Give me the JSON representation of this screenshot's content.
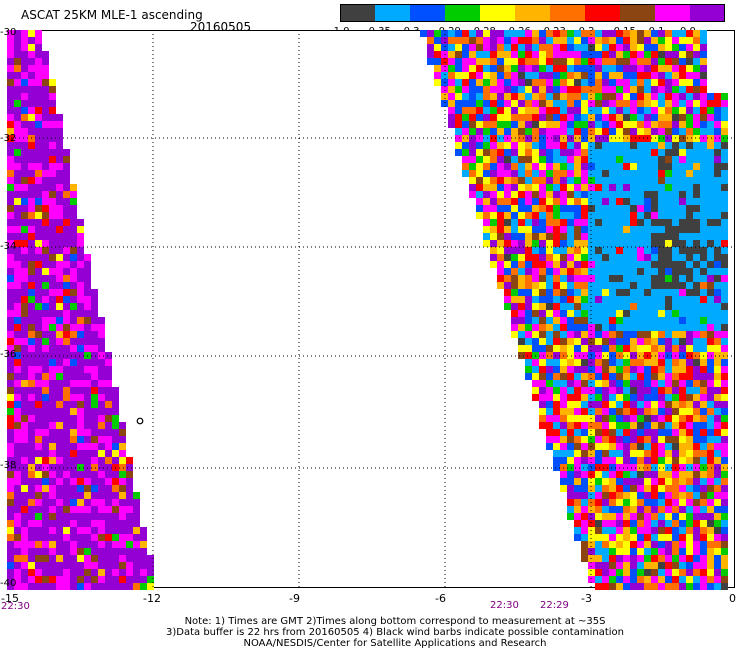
{
  "header": {
    "title": "ASCAT 25KM MLE-1 ascending",
    "date": "20160505"
  },
  "colorbar": {
    "colors": [
      "#404040",
      "#00aaff",
      "#0050ff",
      "#00cc00",
      "#ffff00",
      "#ffb400",
      "#ff7000",
      "#ff0000",
      "#8b4513",
      "#ff00ff",
      "#9400d3"
    ],
    "labels": [
      "-1.0",
      "-0.35",
      "-0.3",
      "-0.29",
      "-0.28",
      "-0.26",
      "-0.23",
      "-0.2",
      "-0.15",
      "-0.1",
      "0.0"
    ]
  },
  "map": {
    "lon_ticks": [
      "-15",
      "-12",
      "-9",
      "-6",
      "-3",
      "0"
    ],
    "lat_ticks": [
      "-30",
      "-32",
      "-34",
      "-36",
      "-38",
      "-40"
    ],
    "time_labels": [
      "22:30",
      "22:30",
      "22:29"
    ]
  },
  "notes": [
    "Note: 1) Times are GMT 2)Times along bottom correspond to measurement at ~35S",
    "3)Data buffer is 22 hrs from 20160505 4) Black wind barbs indicate possible contamination",
    "NOAA/NESDIS/Center for Satellite Applications and Research"
  ]
}
